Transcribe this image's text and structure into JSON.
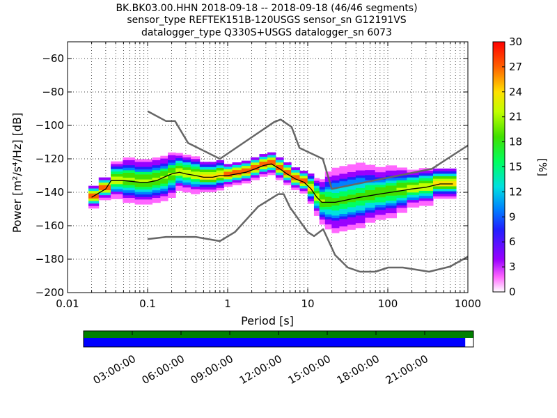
{
  "title_lines": [
    "BK.BK03.00.HHN   2018-09-18 -- 2018-09-18  (46/46 segments)",
    "sensor_type REFTEK151B-120USGS sensor_sn G12191VS",
    "datalogger_type Q330S+USGS datalogger_sn 6073"
  ],
  "chart_data": {
    "type": "heatmap",
    "xlabel": "Period [s]",
    "ylabel": "Power [m²/s⁴/Hz] [dB]",
    "x_scale": "log",
    "xlim": [
      0.01,
      1000
    ],
    "ylim": [
      -200,
      -50
    ],
    "x_ticks": [
      0.01,
      0.1,
      1,
      10,
      100,
      1000
    ],
    "x_tick_labels": [
      "0.01",
      "0.1",
      "1",
      "10",
      "100",
      "1000"
    ],
    "y_ticks": [
      -200,
      -180,
      -160,
      -140,
      -120,
      -100,
      -80,
      -60
    ],
    "y_tick_labels": [
      "−200",
      "−180",
      "−160",
      "−140",
      "−120",
      "−100",
      "−80",
      "−60"
    ],
    "grid": "dotted",
    "colorbar": {
      "label": "[%]",
      "range": [
        0,
        30
      ],
      "ticks": [
        0,
        3,
        6,
        9,
        12,
        15,
        18,
        21,
        24,
        27,
        30
      ],
      "tick_labels": [
        "0",
        "3",
        "6",
        "9",
        "12",
        "15",
        "18",
        "21",
        "24",
        "27",
        "30"
      ]
    },
    "density_band": {
      "periods": [
        0.02,
        0.03,
        0.04,
        0.06,
        0.08,
        0.1,
        0.13,
        0.16,
        0.2,
        0.25,
        0.3,
        0.4,
        0.5,
        0.65,
        0.8,
        1.0,
        1.3,
        1.7,
        2.2,
        2.8,
        3.5,
        4.5,
        5.5,
        7.0,
        9.0,
        11.0,
        13.0,
        15.0,
        18.0,
        22.0,
        28.0,
        35.0,
        45.0,
        60.0,
        80.0,
        110.0,
        150.0,
        200.0,
        300.0,
        450.0,
        650.0
      ],
      "center_db": [
        -143,
        -138,
        -133,
        -133,
        -134,
        -134,
        -133,
        -132,
        -130,
        -128,
        -129,
        -130,
        -131,
        -131,
        -130,
        -130,
        -129,
        -128,
        -126,
        -124,
        -123,
        -126,
        -129,
        -132,
        -134,
        -138,
        -143,
        -146,
        -146,
        -146,
        -145,
        -144,
        -143,
        -142,
        -141,
        -140,
        -139,
        -138,
        -137,
        -135,
        -135
      ],
      "spread_db": [
        3,
        3,
        5,
        6,
        6,
        6,
        6,
        6,
        6,
        5,
        5,
        5,
        4,
        4,
        4,
        3,
        3,
        3,
        3,
        3,
        3,
        3,
        3,
        3,
        3,
        4,
        5,
        6,
        8,
        9,
        9,
        9,
        9,
        8,
        7,
        7,
        6,
        5,
        5,
        4,
        4
      ]
    },
    "series": [
      {
        "role": "median",
        "color": "#000000",
        "x": [
          0.02,
          0.03,
          0.035,
          0.05,
          0.08,
          0.1,
          0.13,
          0.16,
          0.2,
          0.25,
          0.3,
          0.4,
          0.5,
          0.65,
          0.8,
          1.0,
          1.3,
          1.7,
          2.2,
          2.8,
          3.5,
          4.5,
          5.5,
          7.0,
          9.0,
          11.0,
          13.0,
          15.0,
          18.0,
          22.0,
          28.0,
          35.0,
          45.0,
          60.0,
          80.0,
          110.0,
          150.0,
          200.0,
          300.0,
          450.0,
          650.0
        ],
        "y": [
          -143,
          -138,
          -133,
          -133,
          -134,
          -134,
          -133,
          -131,
          -129,
          -128,
          -129,
          -130,
          -131,
          -131,
          -130,
          -130,
          -129,
          -128,
          -126,
          -124,
          -123,
          -126,
          -129,
          -132,
          -134,
          -138,
          -143,
          -146,
          -146,
          -146,
          -145,
          -144,
          -143,
          -142,
          -141,
          -140,
          -139,
          -138,
          -137,
          -135,
          -135
        ]
      },
      {
        "role": "NHNM",
        "color": "#666666",
        "x": [
          0.1,
          0.17,
          0.22,
          0.32,
          0.8,
          3.8,
          4.6,
          6.3,
          7.9,
          15.4,
          20.0,
          354.8,
          1000
        ],
        "y": [
          -91.5,
          -97.4,
          -97.4,
          -110.5,
          -120.0,
          -98.0,
          -96.5,
          -101.0,
          -113.5,
          -120.0,
          -138.0,
          -126.0,
          -112.0
        ]
      },
      {
        "role": "NLNM",
        "color": "#666666",
        "x": [
          0.1,
          0.17,
          0.4,
          0.8,
          1.24,
          2.4,
          4.3,
          5.0,
          6.0,
          10.0,
          12.0,
          15.6,
          21.9,
          31.6,
          45.0,
          70.0,
          101.0,
          154.0,
          328.0,
          600.0,
          1000
        ],
        "y": [
          -168.0,
          -166.7,
          -166.7,
          -169.2,
          -163.7,
          -148.6,
          -141.1,
          -141.1,
          -149.0,
          -163.8,
          -166.2,
          -162.1,
          -177.5,
          -185.0,
          -187.5,
          -187.5,
          -185.0,
          -185.0,
          -187.5,
          -184.4,
          -178.5
        ]
      }
    ]
  },
  "coverage_bar": {
    "top_color": "#008000",
    "bottom_color": "#0000ff",
    "bottom_fill_fraction": 0.979,
    "time_labels": [
      "03:00:00",
      "06:00:00",
      "09:00:00",
      "12:00:00",
      "15:00:00",
      "18:00:00",
      "21:00:00"
    ]
  }
}
